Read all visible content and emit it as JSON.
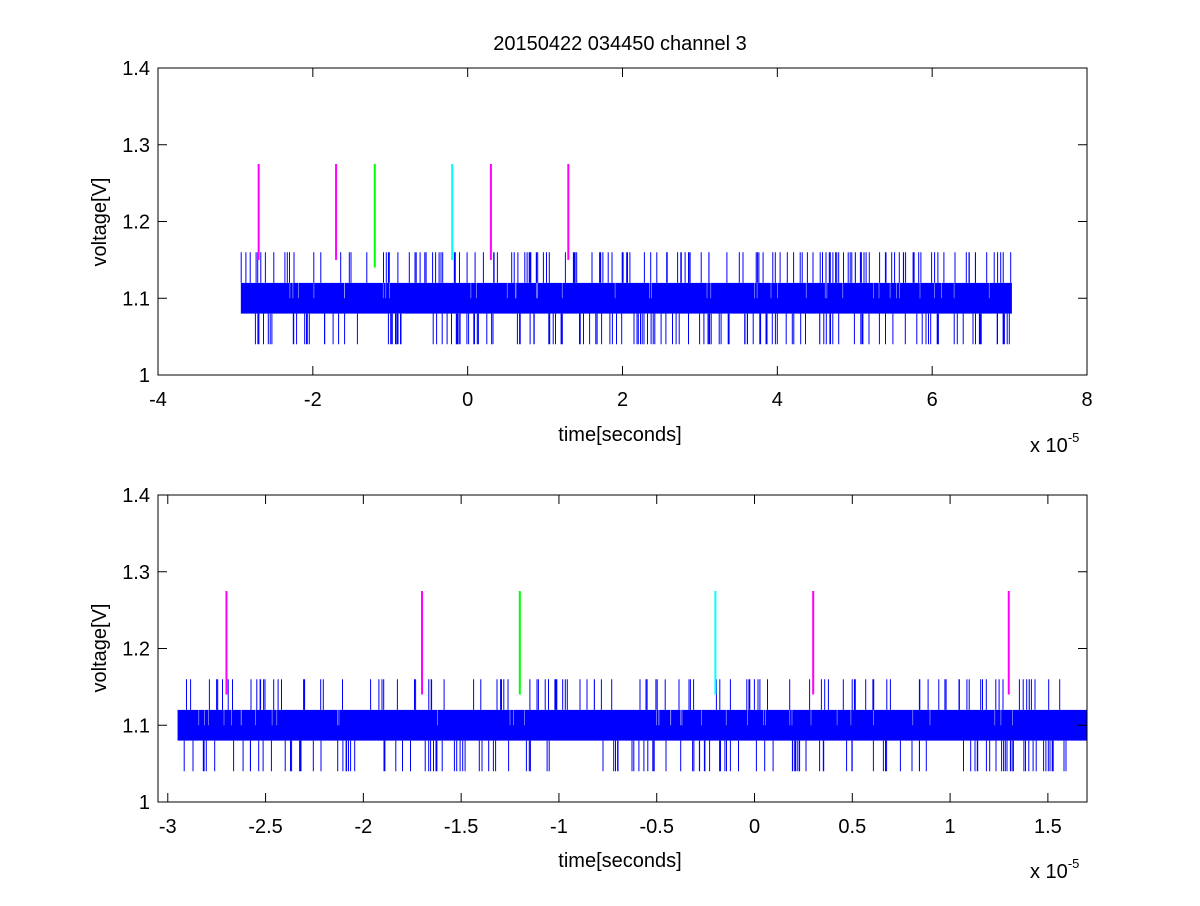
{
  "figure_title": "20150422 034450 channel 3",
  "colors": {
    "signal": "#0000ff",
    "marker_magenta": "#ff00ff",
    "marker_green": "#00ff00",
    "marker_cyan": "#00ffff",
    "axes": "#000000",
    "background": "#ffffff"
  },
  "chart_data": [
    {
      "type": "line",
      "title": "20150422 034450 channel 3",
      "xlabel": "time[seconds]",
      "ylabel": "voltage[V]",
      "x_multiplier": "x 10",
      "x_exponent": "-5",
      "x_scale": 1e-05,
      "xlim": [
        -4,
        8
      ],
      "ylim": [
        1,
        1.4
      ],
      "xticks": [
        "-4",
        "-2",
        "0",
        "2",
        "4",
        "6",
        "8"
      ],
      "xtick_values": [
        -4,
        -2,
        0,
        2,
        4,
        6,
        8
      ],
      "yticks": [
        "1",
        "1.1",
        "1.2",
        "1.3",
        "1.4"
      ],
      "ytick_values": [
        1,
        1.1,
        1.2,
        1.3,
        1.4
      ],
      "grid": false,
      "series": [
        {
          "color": "#0000ff",
          "x_range": [
            -2.93,
            7.03
          ],
          "levels": [
            1.04,
            1.08,
            1.1,
            1.12,
            1.16
          ],
          "dominant_levels": [
            1.08,
            1.12
          ],
          "description_of_values": "quantized noisy voltage toggling between 1.08 and 1.12 V with sparse spikes to 1.04 and 1.16 V"
        }
      ],
      "markers": [
        {
          "x": -2.7,
          "y0": 1.15,
          "y1": 1.275,
          "color": "#ff00ff"
        },
        {
          "x": -1.7,
          "y0": 1.15,
          "y1": 1.275,
          "color": "#ff00ff"
        },
        {
          "x": -1.2,
          "y0": 1.14,
          "y1": 1.275,
          "color": "#00ff00"
        },
        {
          "x": -0.2,
          "y0": 1.15,
          "y1": 1.275,
          "color": "#00ffff"
        },
        {
          "x": 0.3,
          "y0": 1.15,
          "y1": 1.275,
          "color": "#ff00ff"
        },
        {
          "x": 1.3,
          "y0": 1.15,
          "y1": 1.275,
          "color": "#ff00ff"
        }
      ]
    },
    {
      "type": "line",
      "title": "",
      "xlabel": "time[seconds]",
      "ylabel": "voltage[V]",
      "x_multiplier": "x 10",
      "x_exponent": "-5",
      "x_scale": 1e-05,
      "xlim": [
        -3.05,
        1.7
      ],
      "ylim": [
        1,
        1.4
      ],
      "xticks": [
        "-3",
        "-2.5",
        "-2",
        "-1.5",
        "-1",
        "-0.5",
        "0",
        "0.5",
        "1",
        "1.5"
      ],
      "xtick_values": [
        -3,
        -2.5,
        -2,
        -1.5,
        -1,
        -0.5,
        0,
        0.5,
        1,
        1.5
      ],
      "yticks": [
        "1",
        "1.1",
        "1.2",
        "1.3",
        "1.4"
      ],
      "ytick_values": [
        1,
        1.1,
        1.2,
        1.3,
        1.4
      ],
      "grid": false,
      "series": [
        {
          "color": "#0000ff",
          "x_range": [
            -2.95,
            1.7
          ],
          "levels": [
            1.04,
            1.08,
            1.1,
            1.12,
            1.16
          ],
          "dominant_levels": [
            1.08,
            1.12
          ],
          "description_of_values": "zoomed view of the same quantized noisy voltage signal"
        }
      ],
      "markers": [
        {
          "x": -2.7,
          "y0": 1.14,
          "y1": 1.275,
          "color": "#ff00ff"
        },
        {
          "x": -1.7,
          "y0": 1.14,
          "y1": 1.275,
          "color": "#ff00ff"
        },
        {
          "x": -1.2,
          "y0": 1.14,
          "y1": 1.275,
          "color": "#00ff00"
        },
        {
          "x": -0.2,
          "y0": 1.14,
          "y1": 1.275,
          "color": "#00ffff"
        },
        {
          "x": 0.3,
          "y0": 1.14,
          "y1": 1.275,
          "color": "#ff00ff"
        },
        {
          "x": 1.3,
          "y0": 1.14,
          "y1": 1.275,
          "color": "#ff00ff"
        }
      ]
    }
  ]
}
